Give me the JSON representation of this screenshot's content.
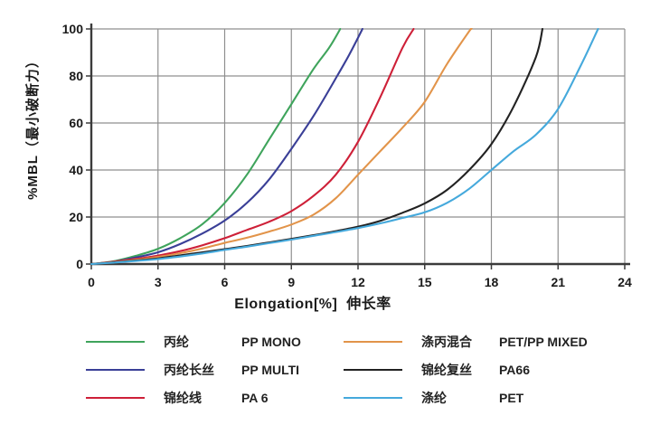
{
  "axis": {
    "y_title": "%MBL（最小破断力）",
    "x_title": "Elongation[%]  伸长率"
  },
  "style": {
    "background": "#ffffff",
    "grid_color": "#8f8f8f",
    "axis_color": "#3b3b3b",
    "text_color": "#1a1a1a"
  },
  "chart_data": {
    "type": "line",
    "title": "",
    "xlabel": "Elongation[%] 伸长率",
    "ylabel": "%MBL（最小破断力）",
    "xlim": [
      0,
      24
    ],
    "ylim": [
      0,
      100
    ],
    "x_ticks": [
      0,
      3,
      6,
      9,
      12,
      15,
      18,
      21,
      24
    ],
    "y_ticks": [
      0,
      20,
      40,
      60,
      80,
      100
    ],
    "grid": true,
    "legend_position": "bottom",
    "legend_columns": [
      [
        0,
        1,
        2
      ],
      [
        3,
        4,
        5
      ]
    ],
    "series": [
      {
        "name_cn": "丙纶",
        "name_en": "PP MONO",
        "color": "#3fa45c",
        "points": [
          [
            0,
            0
          ],
          [
            1,
            1.2
          ],
          [
            2,
            3.5
          ],
          [
            3,
            6.5
          ],
          [
            4,
            11
          ],
          [
            5,
            17
          ],
          [
            6,
            26
          ],
          [
            7,
            38
          ],
          [
            8,
            53
          ],
          [
            9,
            68
          ],
          [
            10,
            83
          ],
          [
            10.7,
            92
          ],
          [
            11.2,
            100
          ]
        ]
      },
      {
        "name_cn": "丙纶长丝",
        "name_en": "PP MULTI",
        "color": "#3a3f97",
        "points": [
          [
            0,
            0
          ],
          [
            1,
            1
          ],
          [
            2,
            2.8
          ],
          [
            3,
            5
          ],
          [
            4,
            8.5
          ],
          [
            5,
            13
          ],
          [
            6,
            18.5
          ],
          [
            7,
            26
          ],
          [
            8,
            36
          ],
          [
            9,
            49
          ],
          [
            10,
            63
          ],
          [
            11,
            79
          ],
          [
            11.6,
            89
          ],
          [
            12.2,
            100
          ]
        ]
      },
      {
        "name_cn": "锦纶线",
        "name_en": "PA 6",
        "color": "#ce2038",
        "points": [
          [
            0,
            0
          ],
          [
            1,
            1
          ],
          [
            2,
            2.2
          ],
          [
            3,
            3.6
          ],
          [
            4,
            5.5
          ],
          [
            5,
            8
          ],
          [
            6,
            11
          ],
          [
            7,
            14.5
          ],
          [
            8,
            18
          ],
          [
            9,
            22.5
          ],
          [
            10,
            29
          ],
          [
            11,
            38
          ],
          [
            12,
            52
          ],
          [
            13,
            71
          ],
          [
            14,
            92
          ],
          [
            14.5,
            100
          ]
        ]
      },
      {
        "name_cn": "涤丙混合",
        "name_en": "PET/PP MIXED",
        "color": "#e2944a",
        "points": [
          [
            0,
            0
          ],
          [
            1,
            0.8
          ],
          [
            2,
            1.8
          ],
          [
            3,
            3
          ],
          [
            4,
            4.6
          ],
          [
            5,
            6.6
          ],
          [
            6,
            9
          ],
          [
            7,
            11.2
          ],
          [
            8,
            13.8
          ],
          [
            9,
            16.8
          ],
          [
            10,
            21
          ],
          [
            11,
            28
          ],
          [
            12,
            38
          ],
          [
            13,
            48
          ],
          [
            14,
            58
          ],
          [
            15,
            69
          ],
          [
            16,
            85
          ],
          [
            17,
            99
          ],
          [
            17.1,
            100
          ]
        ]
      },
      {
        "name_cn": "锦纶复丝",
        "name_en": "PA66",
        "color": "#222222",
        "points": [
          [
            0,
            0
          ],
          [
            1,
            0.7
          ],
          [
            2,
            1.5
          ],
          [
            3,
            2.4
          ],
          [
            4,
            3.7
          ],
          [
            5,
            5
          ],
          [
            6,
            6.3
          ],
          [
            7,
            7.7
          ],
          [
            8,
            9.2
          ],
          [
            9,
            10.7
          ],
          [
            10,
            12.3
          ],
          [
            11,
            14
          ],
          [
            12,
            15.9
          ],
          [
            13,
            18.4
          ],
          [
            14,
            21.8
          ],
          [
            15,
            25.8
          ],
          [
            16,
            31.5
          ],
          [
            17,
            40
          ],
          [
            18,
            51
          ],
          [
            19,
            67
          ],
          [
            20,
            88
          ],
          [
            20.3,
            100
          ]
        ]
      },
      {
        "name_cn": "涤纶",
        "name_en": "PET",
        "color": "#45a9dc",
        "points": [
          [
            0,
            0
          ],
          [
            1,
            0.6
          ],
          [
            2,
            1.3
          ],
          [
            3,
            2.1
          ],
          [
            4,
            3.2
          ],
          [
            5,
            4.5
          ],
          [
            6,
            6
          ],
          [
            7,
            7.4
          ],
          [
            8,
            8.9
          ],
          [
            9,
            10.4
          ],
          [
            10,
            12
          ],
          [
            11,
            13.6
          ],
          [
            12,
            15.3
          ],
          [
            13,
            17.3
          ],
          [
            14,
            19.6
          ],
          [
            15,
            22
          ],
          [
            16,
            26
          ],
          [
            17,
            32
          ],
          [
            18,
            40
          ],
          [
            19,
            48
          ],
          [
            20,
            55
          ],
          [
            21,
            66
          ],
          [
            22,
            84
          ],
          [
            22.8,
            100
          ]
        ]
      }
    ]
  }
}
